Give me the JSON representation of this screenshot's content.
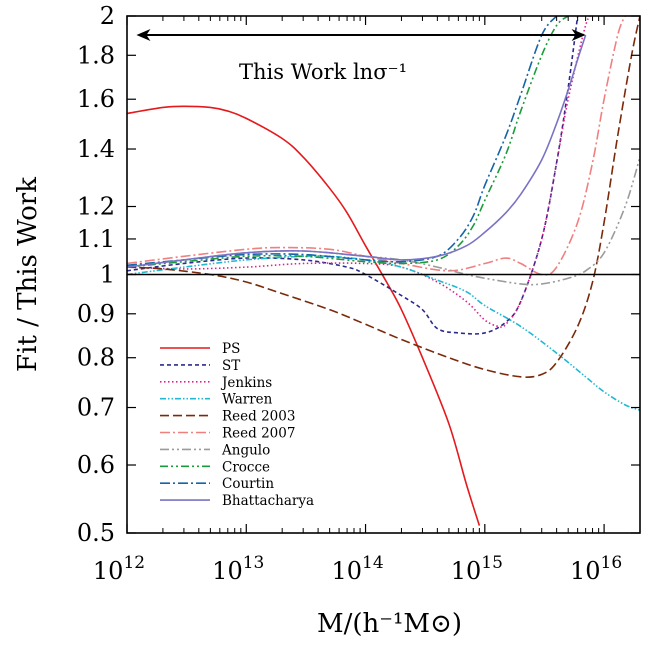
{
  "chart_data": {
    "type": "line",
    "xlabel": "M/(h⁻¹M⊙)",
    "ylabel": "Fit / This Work",
    "xscale": "log",
    "yscale": "log",
    "xlim": [
      1000000000000.0,
      2e+16
    ],
    "ylim": [
      0.5,
      2.0
    ],
    "grid": false,
    "legend_position": "bottom-left",
    "x_ticks": [
      {
        "value": 1000000000000.0,
        "base": "10",
        "exp": "12"
      },
      {
        "value": 10000000000000.0,
        "base": "10",
        "exp": "13"
      },
      {
        "value": 100000000000000.0,
        "base": "10",
        "exp": "14"
      },
      {
        "value": 1000000000000000.0,
        "base": "10",
        "exp": "15"
      },
      {
        "value": 1e+16,
        "base": "10",
        "exp": "16"
      }
    ],
    "y_ticks": [
      {
        "value": 0.5,
        "label": "0.5"
      },
      {
        "value": 0.6,
        "label": "0.6"
      },
      {
        "value": 0.7,
        "label": "0.7"
      },
      {
        "value": 0.8,
        "label": "0.8"
      },
      {
        "value": 0.9,
        "label": "0.9"
      },
      {
        "value": 1.0,
        "label": "1"
      },
      {
        "value": 1.1,
        "label": "1.1"
      },
      {
        "value": 1.2,
        "label": "1.2"
      },
      {
        "value": 1.4,
        "label": "1.4"
      },
      {
        "value": 1.6,
        "label": "1.6"
      },
      {
        "value": 1.8,
        "label": "1.8"
      },
      {
        "value": 2.0,
        "label": "2"
      }
    ],
    "reference_line": {
      "y": 1.0,
      "color": "#000000"
    },
    "annotation": {
      "text": "This Work lnσ⁻¹",
      "arrow_x_range": [
        1200000000000.0,
        7000000000000000.0
      ]
    },
    "series": [
      {
        "name": "PS",
        "color": "#e41a1c",
        "dash": "solid",
        "x": [
          1000000000000.0,
          2000000000000.0,
          3000000000000.0,
          5000000000000.0,
          7000000000000.0,
          10000000000000.0,
          20000000000000.0,
          30000000000000.0,
          50000000000000.0,
          70000000000000.0,
          100000000000000.0,
          150000000000000.0,
          200000000000000.0,
          300000000000000.0,
          500000000000000.0,
          700000000000000.0,
          900000000000000.0
        ],
        "y": [
          1.54,
          1.565,
          1.57,
          1.565,
          1.55,
          1.52,
          1.44,
          1.37,
          1.26,
          1.18,
          1.08,
          0.98,
          0.91,
          0.8,
          0.67,
          0.57,
          0.51
        ]
      },
      {
        "name": "ST",
        "color": "#2b2b8c",
        "dash": "4,3",
        "x": [
          1000000000000.0,
          3000000000000.0,
          10000000000000.0,
          30000000000000.0,
          70000000000000.0,
          100000000000000.0,
          200000000000000.0,
          300000000000000.0,
          400000000000000.0,
          600000000000000.0,
          1000000000000000.0,
          1500000000000000.0,
          2000000000000000.0,
          3000000000000000.0,
          4000000000000000.0,
          5000000000000000.0,
          6000000000000000.0
        ],
        "y": [
          1.01,
          1.03,
          1.045,
          1.04,
          1.02,
          1.0,
          0.945,
          0.91,
          0.865,
          0.855,
          0.855,
          0.88,
          0.93,
          1.1,
          1.35,
          1.65,
          2.0
        ]
      },
      {
        "name": "Jenkins",
        "color": "#e0208a",
        "dash": "1.5,2.5",
        "x": [
          1000000000000.0,
          3000000000000.0,
          10000000000000.0,
          30000000000000.0,
          100000000000000.0,
          200000000000000.0,
          400000000000000.0,
          700000000000000.0,
          1000000000000000.0,
          1300000000000000.0,
          1500000000000000.0,
          2000000000000000.0,
          3000000000000000.0,
          4000000000000000.0,
          5000000000000000.0,
          7000000000000000.0,
          8000000000000000.0
        ],
        "y": [
          1.02,
          1.015,
          1.02,
          1.03,
          1.03,
          1.02,
          0.98,
          0.93,
          0.885,
          0.87,
          0.875,
          0.93,
          1.1,
          1.35,
          1.6,
          1.95,
          2.0
        ]
      },
      {
        "name": "Warren",
        "color": "#22b8d4",
        "dash": "6,2,1.5,2,1.5,2",
        "x": [
          1000000000000.0,
          3000000000000.0,
          10000000000000.0,
          30000000000000.0,
          50000000000000.0,
          100000000000000.0,
          200000000000000.0,
          400000000000000.0,
          700000000000000.0,
          1000000000000000.0,
          2000000000000000.0,
          4000000000000000.0,
          7000000000000000.0,
          1e+16,
          1.5e+16,
          2e+16
        ],
        "y": [
          1.0,
          1.02,
          1.04,
          1.05,
          1.05,
          1.04,
          1.02,
          0.985,
          0.955,
          0.92,
          0.87,
          0.81,
          0.76,
          0.73,
          0.705,
          0.695
        ]
      },
      {
        "name": "Reed 2003",
        "color": "#7a2a0a",
        "dash": "9,4",
        "x": [
          1000000000000.0,
          2000000000000.0,
          5000000000000.0,
          10000000000000.0,
          20000000000000.0,
          50000000000000.0,
          100000000000000.0,
          200000000000000.0,
          500000000000000.0,
          1000000000000000.0,
          2000000000000000.0,
          3000000000000000.0,
          4000000000000000.0,
          6000000000000000.0,
          8000000000000000.0,
          1e+16,
          1.3e+16,
          1.7e+16,
          2e+16
        ],
        "y": [
          1.02,
          1.015,
          1.0,
          0.98,
          0.95,
          0.91,
          0.875,
          0.84,
          0.8,
          0.775,
          0.76,
          0.765,
          0.79,
          0.87,
          0.98,
          1.15,
          1.45,
          1.8,
          2.0
        ]
      },
      {
        "name": "Reed 2007",
        "color": "#f08080",
        "dash": "10,3,2,3",
        "x": [
          1000000000000.0,
          3000000000000.0,
          10000000000000.0,
          20000000000000.0,
          50000000000000.0,
          100000000000000.0,
          200000000000000.0,
          500000000000000.0,
          1000000000000000.0,
          1500000000000000.0,
          2000000000000000.0,
          3000000000000000.0,
          4000000000000000.0,
          6000000000000000.0,
          8000000000000000.0,
          1e+16,
          1.3e+16,
          1.5e+16
        ],
        "y": [
          1.03,
          1.05,
          1.07,
          1.075,
          1.07,
          1.05,
          1.03,
          1.01,
          1.03,
          1.045,
          1.03,
          1.0,
          1.02,
          1.15,
          1.35,
          1.6,
          1.9,
          2.0
        ]
      },
      {
        "name": "Angulo",
        "color": "#9b9b9b",
        "dash": "9,3,2,3,2,3",
        "x": [
          1000000000000.0,
          3000000000000.0,
          10000000000000.0,
          30000000000000.0,
          100000000000000.0,
          200000000000000.0,
          400000000000000.0,
          700000000000000.0,
          1000000000000000.0,
          2000000000000000.0,
          3000000000000000.0,
          5000000000000000.0,
          7000000000000000.0,
          1e+16,
          1.5e+16,
          2e+16
        ],
        "y": [
          1.02,
          1.04,
          1.06,
          1.065,
          1.05,
          1.04,
          1.02,
          1.0,
          0.99,
          0.975,
          0.975,
          0.99,
          1.01,
          1.06,
          1.2,
          1.37
        ]
      },
      {
        "name": "Crocce",
        "color": "#1a9c3a",
        "dash": "8,3,2,3,2,3",
        "x": [
          1000000000000.0,
          3000000000000.0,
          10000000000000.0,
          30000000000000.0,
          100000000000000.0,
          200000000000000.0,
          400000000000000.0,
          600000000000000.0,
          800000000000000.0,
          1000000000000000.0,
          1500000000000000.0,
          2000000000000000.0,
          3000000000000000.0,
          4000000000000000.0,
          5000000000000000.0
        ],
        "y": [
          1.02,
          1.035,
          1.05,
          1.05,
          1.035,
          1.03,
          1.04,
          1.08,
          1.14,
          1.22,
          1.38,
          1.55,
          1.8,
          1.95,
          2.0
        ]
      },
      {
        "name": "Courtin",
        "color": "#1565a8",
        "dash": "10,3,2,3",
        "x": [
          1000000000000.0,
          3000000000000.0,
          10000000000000.0,
          30000000000000.0,
          100000000000000.0,
          200000000000000.0,
          400000000000000.0,
          600000000000000.0,
          800000000000000.0,
          1000000000000000.0,
          1500000000000000.0,
          2000000000000000.0,
          3000000000000000.0,
          4000000000000000.0
        ],
        "y": [
          1.025,
          1.04,
          1.055,
          1.055,
          1.04,
          1.035,
          1.05,
          1.1,
          1.17,
          1.27,
          1.45,
          1.62,
          1.9,
          2.0
        ]
      },
      {
        "name": "Bhattacharya",
        "color": "#7a72c4",
        "dash": "solid",
        "x": [
          1000000000000.0,
          3000000000000.0,
          10000000000000.0,
          30000000000000.0,
          100000000000000.0,
          200000000000000.0,
          400000000000000.0,
          700000000000000.0,
          1000000000000000.0,
          1500000000000000.0,
          2000000000000000.0,
          3000000000000000.0,
          4000000000000000.0,
          5000000000000000.0,
          6000000000000000.0,
          7000000000000000.0
        ],
        "y": [
          1.02,
          1.04,
          1.06,
          1.065,
          1.05,
          1.04,
          1.05,
          1.08,
          1.12,
          1.18,
          1.24,
          1.36,
          1.5,
          1.64,
          1.78,
          1.9
        ]
      }
    ]
  }
}
